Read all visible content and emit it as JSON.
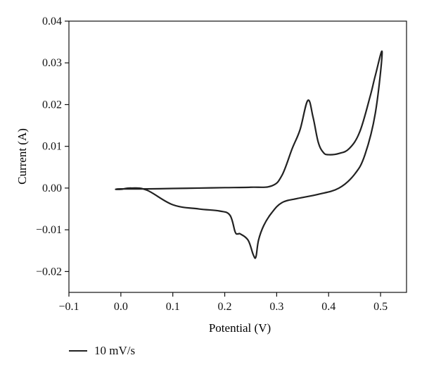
{
  "chart_data": {
    "type": "line",
    "xlabel": "Potential (V)",
    "ylabel": "Current (A)",
    "xlim": [
      -0.1,
      0.55
    ],
    "ylim": [
      -0.025,
      0.04
    ],
    "xticks": [
      -0.1,
      0.0,
      0.1,
      0.2,
      0.3,
      0.4,
      0.5
    ],
    "xtick_labels": [
      "−0.1",
      "0.0",
      "0.1",
      "0.2",
      "0.3",
      "0.4",
      "0.5"
    ],
    "yticks": [
      -0.02,
      -0.01,
      0.0,
      0.01,
      0.02,
      0.03,
      0.04
    ],
    "ytick_labels": [
      "−0.02",
      "−0.01",
      "0.00",
      "0.01",
      "0.02",
      "0.03",
      "0.04"
    ],
    "grid": false,
    "legend_position": "bottom-left",
    "series": [
      {
        "name": "10 mV/s",
        "color": "#222222",
        "x": [
          -0.01,
          0.0,
          0.05,
          0.1,
          0.15,
          0.2,
          0.25,
          0.29,
          0.31,
          0.33,
          0.345,
          0.36,
          0.37,
          0.38,
          0.39,
          0.4,
          0.42,
          0.44,
          0.46,
          0.48,
          0.49,
          0.503,
          0.49,
          0.47,
          0.45,
          0.42,
          0.38,
          0.34,
          0.31,
          0.29,
          0.275,
          0.265,
          0.26,
          0.255,
          0.245,
          0.23,
          0.225,
          0.22,
          0.21,
          0.19,
          0.15,
          0.1,
          0.05,
          0.02,
          0.0,
          -0.01
        ],
        "y": [
          -0.0003,
          -0.0002,
          -0.0002,
          -0.0001,
          0.0,
          0.0001,
          0.0002,
          0.0005,
          0.003,
          0.0095,
          0.014,
          0.021,
          0.017,
          0.011,
          0.0085,
          0.008,
          0.0083,
          0.0095,
          0.0135,
          0.022,
          0.027,
          0.0325,
          0.018,
          0.008,
          0.0033,
          0.0,
          -0.0015,
          -0.0025,
          -0.0035,
          -0.006,
          -0.009,
          -0.0125,
          -0.0165,
          -0.016,
          -0.0125,
          -0.011,
          -0.011,
          -0.0105,
          -0.0065,
          -0.0055,
          -0.005,
          -0.004,
          -0.0005,
          0.0,
          -0.0003,
          -0.0003
        ]
      }
    ]
  },
  "legend": {
    "label": "10 mV/s"
  }
}
